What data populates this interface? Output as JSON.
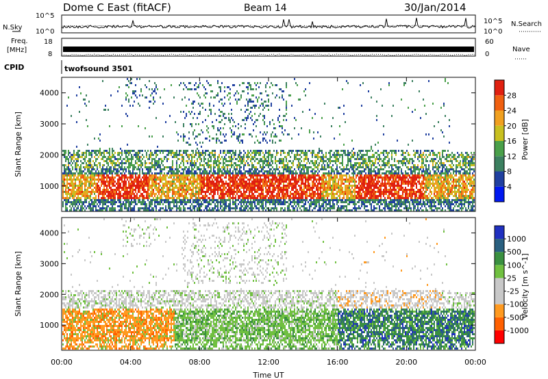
{
  "header": {
    "station": "Dome C East (fitACF)",
    "beam": "Beam 14",
    "date": "30/Jan/2014"
  },
  "side_labels": {
    "nsky": "N.Sky",
    "nsearch": "N.Search",
    "freq_line1": "Freq.",
    "freq_line2": "[MHz]",
    "nave": "Nave",
    "cpid": "CPID"
  },
  "top_panels": {
    "nsky_ticks": [
      "10^5",
      "10^0"
    ],
    "nsearch_ticks": [
      "10^5",
      "10^0"
    ],
    "freq_ticks": [
      "18",
      "8"
    ],
    "nave_ticks": [
      "60",
      "0"
    ],
    "cpid_value": "twofsound 3501"
  },
  "colors": {
    "power_scale": [
      "#0018f0",
      "#2040a0",
      "#3c8060",
      "#4aa04a",
      "#c8c020",
      "#f0a020",
      "#f06010",
      "#e02010"
    ],
    "velocity_scale": [
      "#ff0000",
      "#ff6000",
      "#ff9a20",
      "#c8c8c8",
      "#c8c8c8",
      "#70c040",
      "#3a9040",
      "#2a6080",
      "#2030c0"
    ]
  },
  "chart_data": [
    {
      "type": "heatmap",
      "name": "power",
      "xlabel": "",
      "ylabel": "Slant Range [km]",
      "xlim": [
        "00:00",
        "24:00"
      ],
      "ylim": [
        180,
        4500
      ],
      "yticks": [
        1000,
        2000,
        3000,
        4000
      ],
      "colorbar": {
        "label": "Power [dB]",
        "ticks": [
          4,
          8,
          12,
          16,
          20,
          24,
          28
        ],
        "range": [
          0,
          32
        ]
      },
      "grid": false
    },
    {
      "type": "heatmap",
      "name": "velocity",
      "xlabel": "Time UT",
      "ylabel": "Slant Range [km]",
      "xticks": [
        "00:00",
        "04:00",
        "08:00",
        "12:00",
        "16:00",
        "20:00",
        "00:00"
      ],
      "ylim": [
        180,
        4500
      ],
      "yticks": [
        1000,
        2000,
        3000,
        4000
      ],
      "colorbar": {
        "label": "Velocity [m s^-1]",
        "ticks": [
          "1000",
          "500",
          "100",
          "25",
          "-25",
          "-100",
          "-500",
          "-1000"
        ]
      },
      "grid": false
    }
  ]
}
